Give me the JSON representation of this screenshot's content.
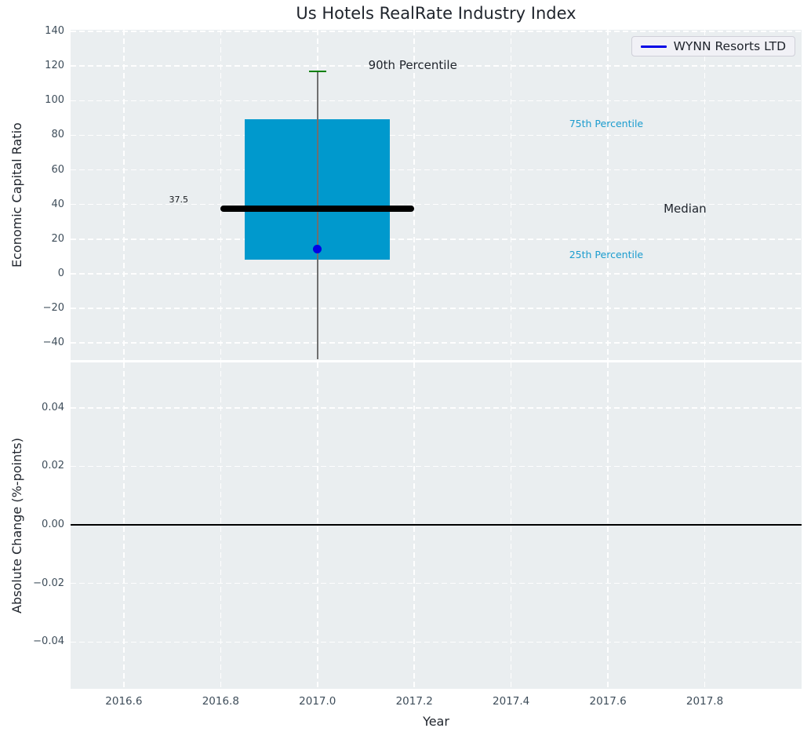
{
  "figure": {
    "title": "Us Hotels RealRate Industry Index",
    "legend": {
      "label": "WYNN Resorts LTD",
      "line_color": "#0101e6"
    },
    "colors": {
      "axes_bg": "#eaeef0",
      "grid": "#ffffff",
      "box_fill": "#0099cd",
      "median_line": "#000000",
      "whisker_line": "#6f6f6f",
      "whisker_cap": "#008000",
      "company_point": "#0101e6",
      "percentile_label": "#1b9cce",
      "tick_text": "#3e4d5a",
      "text": "#20252d",
      "zero_line": "#000000"
    }
  },
  "chart_data": [
    {
      "type": "boxplot",
      "title": "Us Hotels RealRate Industry Index",
      "ylabel": "Economic Capital Ratio",
      "xlabel": "Year",
      "grid": true,
      "legend_position": "upper right",
      "xlim": [
        2016.49,
        2018.0
      ],
      "ylim": [
        -50,
        141
      ],
      "xticks": [
        2016.6,
        2016.8,
        2017.0,
        2017.2,
        2017.4,
        2017.6,
        2017.8
      ],
      "xtick_labels": [
        "2016.6",
        "2016.8",
        "2017.0",
        "2017.2",
        "2017.4",
        "2017.6",
        "2017.8"
      ],
      "yticks": [
        140,
        120,
        100,
        80,
        60,
        40,
        20,
        0,
        -20,
        -40
      ],
      "ytick_labels": [
        "140",
        "120",
        "100",
        "80",
        "60",
        "40",
        "20",
        "0",
        "−20",
        "−40"
      ],
      "box": {
        "x": 2017.0,
        "box_width_years": 0.3,
        "q1": 8,
        "q3": 89.5,
        "median": 37.5,
        "median_label": "37.5",
        "median_line_width_years": 0.4,
        "percentile_90": 117,
        "whisker_low_clipped": -49.5,
        "cap_width_years": 0.036,
        "company_point": {
          "name": "WYNN Resorts LTD",
          "x": 2017.0,
          "value": 14
        }
      },
      "annotations": [
        {
          "text": "90th Percentile",
          "x": 2017.105,
          "y": 120.5,
          "size": 15,
          "color": "#20252d",
          "anchor": "left"
        },
        {
          "text": "75th Percentile",
          "x": 2017.52,
          "y": 86.5,
          "size": 12.5,
          "color": "#1b9cce",
          "anchor": "left"
        },
        {
          "text": "Median",
          "x": 2017.715,
          "y": 37.5,
          "size": 15,
          "color": "#20252d",
          "anchor": "left"
        },
        {
          "text": "25th Percentile",
          "x": 2017.52,
          "y": 11.0,
          "size": 12.5,
          "color": "#1b9cce",
          "anchor": "left"
        },
        {
          "text": "37.5",
          "x": 2016.733,
          "y": 42.5,
          "size": 11,
          "color": "#15181c",
          "anchor": "right"
        }
      ]
    },
    {
      "type": "line",
      "ylabel": "Absolute Change (%-points)",
      "ylim": [
        -0.056,
        0.0555
      ],
      "yticks": [
        0.04,
        0.02,
        0.0,
        -0.02,
        -0.04
      ],
      "ytick_labels": [
        "0.04",
        "0.02",
        "0.00",
        "−0.02",
        "−0.04"
      ],
      "zero_line": 0.0,
      "series": []
    }
  ]
}
